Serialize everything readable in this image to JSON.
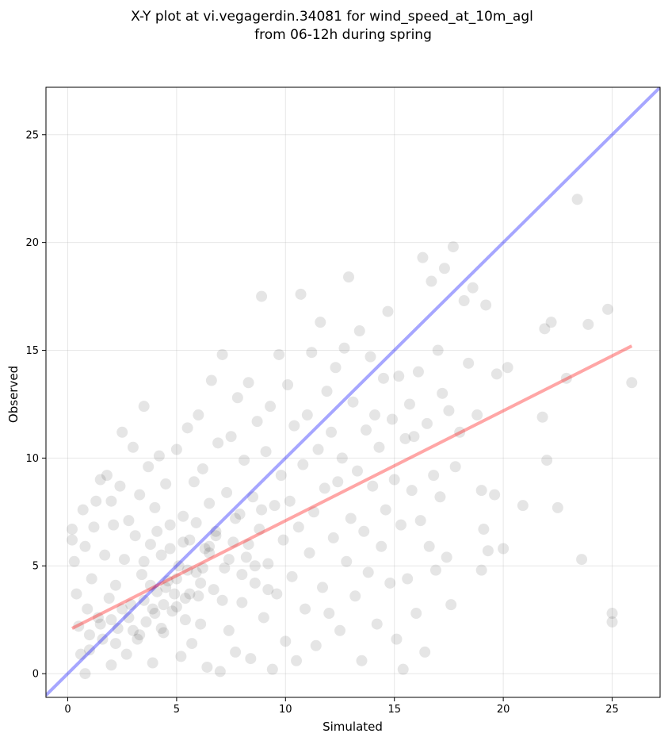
{
  "chart_data": {
    "type": "scatter",
    "title_lines": [
      "X-Y plot at vi.vegagerdin.34081 for wind_speed_at_10m_agl",
      "from 06-12h during spring"
    ],
    "xlabel": "Simulated",
    "ylabel": "Observed",
    "xlim": [
      -1.0,
      27.2
    ],
    "ylim": [
      -1.1,
      27.2
    ],
    "xticks": [
      0,
      5,
      10,
      15,
      20,
      25
    ],
    "yticks": [
      0,
      5,
      10,
      15,
      20,
      25
    ],
    "grid": true,
    "point_color": "#000000",
    "point_opacity": 0.1,
    "points": [
      [
        0.2,
        6.7
      ],
      [
        0.2,
        6.2
      ],
      [
        0.3,
        5.2
      ],
      [
        0.4,
        3.7
      ],
      [
        0.5,
        2.2
      ],
      [
        0.6,
        0.9
      ],
      [
        0.7,
        7.6
      ],
      [
        0.8,
        5.9
      ],
      [
        0.8,
        0.0
      ],
      [
        0.9,
        3.0
      ],
      [
        1.0,
        1.1
      ],
      [
        1.1,
        4.4
      ],
      [
        1.2,
        6.8
      ],
      [
        1.3,
        8.0
      ],
      [
        1.4,
        2.6
      ],
      [
        1.5,
        9.0
      ],
      [
        1.6,
        1.6
      ],
      [
        1.7,
        5.5
      ],
      [
        1.8,
        9.2
      ],
      [
        1.9,
        3.5
      ],
      [
        2.0,
        0.4
      ],
      [
        2.0,
        8.0
      ],
      [
        2.1,
        6.9
      ],
      [
        2.2,
        4.1
      ],
      [
        2.3,
        2.1
      ],
      [
        2.4,
        8.7
      ],
      [
        2.5,
        11.2
      ],
      [
        2.6,
        5.3
      ],
      [
        2.7,
        0.9
      ],
      [
        2.8,
        7.1
      ],
      [
        2.9,
        3.2
      ],
      [
        3.0,
        10.5
      ],
      [
        3.1,
        6.4
      ],
      [
        3.2,
        1.6
      ],
      [
        3.3,
        8.3
      ],
      [
        3.4,
        4.6
      ],
      [
        3.5,
        12.4
      ],
      [
        3.6,
        2.4
      ],
      [
        3.7,
        9.6
      ],
      [
        3.8,
        6.0
      ],
      [
        3.9,
        0.5
      ],
      [
        4.0,
        7.7
      ],
      [
        4.1,
        3.8
      ],
      [
        4.2,
        10.1
      ],
      [
        4.3,
        5.5
      ],
      [
        4.4,
        1.9
      ],
      [
        4.5,
        8.8
      ],
      [
        4.6,
        4.3
      ],
      [
        4.7,
        6.9
      ],
      [
        4.8,
        2.9
      ],
      [
        5.0,
        10.4
      ],
      [
        5.1,
        5.0
      ],
      [
        5.2,
        0.8
      ],
      [
        5.3,
        7.3
      ],
      [
        5.4,
        3.5
      ],
      [
        5.5,
        11.4
      ],
      [
        5.6,
        6.2
      ],
      [
        5.7,
        1.4
      ],
      [
        5.8,
        8.9
      ],
      [
        5.9,
        4.7
      ],
      [
        6.0,
        12.0
      ],
      [
        6.1,
        2.3
      ],
      [
        6.2,
        9.5
      ],
      [
        6.3,
        5.8
      ],
      [
        6.4,
        0.3
      ],
      [
        6.5,
        7.9
      ],
      [
        6.6,
        13.6
      ],
      [
        6.7,
        3.9
      ],
      [
        6.8,
        6.6
      ],
      [
        6.9,
        10.7
      ],
      [
        7.0,
        0.1
      ],
      [
        7.1,
        14.8
      ],
      [
        7.2,
        4.9
      ],
      [
        7.3,
        8.4
      ],
      [
        7.4,
        2.0
      ],
      [
        7.5,
        11.0
      ],
      [
        7.6,
        6.1
      ],
      [
        7.7,
        1.0
      ],
      [
        7.8,
        12.8
      ],
      [
        7.9,
        7.4
      ],
      [
        8.0,
        3.3
      ],
      [
        8.1,
        9.9
      ],
      [
        8.2,
        5.4
      ],
      [
        8.3,
        13.5
      ],
      [
        8.4,
        0.7
      ],
      [
        8.5,
        8.2
      ],
      [
        8.6,
        4.2
      ],
      [
        8.7,
        11.7
      ],
      [
        8.8,
        6.7
      ],
      [
        8.9,
        17.5
      ],
      [
        9.0,
        2.6
      ],
      [
        9.1,
        10.3
      ],
      [
        9.2,
        5.1
      ],
      [
        9.3,
        12.4
      ],
      [
        9.4,
        0.2
      ],
      [
        9.5,
        7.8
      ],
      [
        9.6,
        3.7
      ],
      [
        9.7,
        14.8
      ],
      [
        9.8,
        9.2
      ],
      [
        9.9,
        6.2
      ],
      [
        10.0,
        1.5
      ],
      [
        10.1,
        13.4
      ],
      [
        10.2,
        8.0
      ],
      [
        10.3,
        4.5
      ],
      [
        10.4,
        11.5
      ],
      [
        10.5,
        0.6
      ],
      [
        10.6,
        6.8
      ],
      [
        10.7,
        17.6
      ],
      [
        10.8,
        9.7
      ],
      [
        10.9,
        3.0
      ],
      [
        11.0,
        12.0
      ],
      [
        11.1,
        5.6
      ],
      [
        11.2,
        14.9
      ],
      [
        11.3,
        7.5
      ],
      [
        11.4,
        1.3
      ],
      [
        11.5,
        10.4
      ],
      [
        11.6,
        16.3
      ],
      [
        11.7,
        4.0
      ],
      [
        11.8,
        8.6
      ],
      [
        11.9,
        13.1
      ],
      [
        12.0,
        2.8
      ],
      [
        12.1,
        11.2
      ],
      [
        12.2,
        6.3
      ],
      [
        12.3,
        14.2
      ],
      [
        12.4,
        8.9
      ],
      [
        12.5,
        2.0
      ],
      [
        12.6,
        10.0
      ],
      [
        12.7,
        15.1
      ],
      [
        12.8,
        5.2
      ],
      [
        12.9,
        18.4
      ],
      [
        13.0,
        7.2
      ],
      [
        13.1,
        12.6
      ],
      [
        13.2,
        3.6
      ],
      [
        13.3,
        9.4
      ],
      [
        13.4,
        15.9
      ],
      [
        13.5,
        0.6
      ],
      [
        13.6,
        6.6
      ],
      [
        13.7,
        11.3
      ],
      [
        13.8,
        4.7
      ],
      [
        13.9,
        14.7
      ],
      [
        14.0,
        8.7
      ],
      [
        14.1,
        12.0
      ],
      [
        14.2,
        2.3
      ],
      [
        14.3,
        10.5
      ],
      [
        14.4,
        5.9
      ],
      [
        14.5,
        13.7
      ],
      [
        14.6,
        7.6
      ],
      [
        14.7,
        16.8
      ],
      [
        14.8,
        4.2
      ],
      [
        14.9,
        11.8
      ],
      [
        15.0,
        9.0
      ],
      [
        15.1,
        1.6
      ],
      [
        15.2,
        13.8
      ],
      [
        15.3,
        6.9
      ],
      [
        15.4,
        0.2
      ],
      [
        15.5,
        10.9
      ],
      [
        15.6,
        4.4
      ],
      [
        15.7,
        12.5
      ],
      [
        15.8,
        8.5
      ],
      [
        15.9,
        11.0
      ],
      [
        16.0,
        2.8
      ],
      [
        16.1,
        14.0
      ],
      [
        16.2,
        7.1
      ],
      [
        16.3,
        19.3
      ],
      [
        16.4,
        1.0
      ],
      [
        16.5,
        11.6
      ],
      [
        16.6,
        5.9
      ],
      [
        16.7,
        18.2
      ],
      [
        16.8,
        9.2
      ],
      [
        16.9,
        4.8
      ],
      [
        17.0,
        15.0
      ],
      [
        17.1,
        8.2
      ],
      [
        17.2,
        13.0
      ],
      [
        17.3,
        18.8
      ],
      [
        17.4,
        5.4
      ],
      [
        17.5,
        12.2
      ],
      [
        17.6,
        3.2
      ],
      [
        17.7,
        19.8
      ],
      [
        17.8,
        9.6
      ],
      [
        18.0,
        11.2
      ],
      [
        18.2,
        17.3
      ],
      [
        18.4,
        14.4
      ],
      [
        18.6,
        17.9
      ],
      [
        18.8,
        12.0
      ],
      [
        19.0,
        8.5
      ],
      [
        19.0,
        4.8
      ],
      [
        19.1,
        6.7
      ],
      [
        19.2,
        17.1
      ],
      [
        19.3,
        5.7
      ],
      [
        19.6,
        8.3
      ],
      [
        19.7,
        13.9
      ],
      [
        20.0,
        5.8
      ],
      [
        20.2,
        14.2
      ],
      [
        20.9,
        7.8
      ],
      [
        21.8,
        11.9
      ],
      [
        21.9,
        16.0
      ],
      [
        22.0,
        9.9
      ],
      [
        22.2,
        16.3
      ],
      [
        22.5,
        7.7
      ],
      [
        22.9,
        13.7
      ],
      [
        23.4,
        22.0
      ],
      [
        23.6,
        5.3
      ],
      [
        23.9,
        16.2
      ],
      [
        24.8,
        16.9
      ],
      [
        25.0,
        2.8
      ],
      [
        25.0,
        2.4
      ],
      [
        25.9,
        13.5
      ],
      [
        3.5,
        5.2
      ],
      [
        3.8,
        4.1
      ],
      [
        4.1,
        6.6
      ],
      [
        4.4,
        3.2
      ],
      [
        4.7,
        5.8
      ],
      [
        5.0,
        4.4
      ],
      [
        5.3,
        6.1
      ],
      [
        5.6,
        3.7
      ],
      [
        5.9,
        7.0
      ],
      [
        6.2,
        4.9
      ],
      [
        6.5,
        5.6
      ],
      [
        6.8,
        6.4
      ],
      [
        7.1,
        3.4
      ],
      [
        7.4,
        5.3
      ],
      [
        7.7,
        7.2
      ],
      [
        8.0,
        4.6
      ],
      [
        8.3,
        6.0
      ],
      [
        8.6,
        5.0
      ],
      [
        8.9,
        7.6
      ],
      [
        9.2,
        3.9
      ],
      [
        2.0,
        2.5
      ],
      [
        2.5,
        3.0
      ],
      [
        3.0,
        2.0
      ],
      [
        3.5,
        3.4
      ],
      [
        4.0,
        2.8
      ],
      [
        4.5,
        4.0
      ],
      [
        5.0,
        3.1
      ],
      [
        5.5,
        4.8
      ],
      [
        6.0,
        3.6
      ],
      [
        6.5,
        5.9
      ],
      [
        1.0,
        1.8
      ],
      [
        1.5,
        2.3
      ],
      [
        2.2,
        1.4
      ],
      [
        2.8,
        2.6
      ],
      [
        3.3,
        1.8
      ],
      [
        3.9,
        3.0
      ],
      [
        4.3,
        2.1
      ],
      [
        4.9,
        3.7
      ],
      [
        5.4,
        2.5
      ],
      [
        6.1,
        4.2
      ]
    ],
    "reference_line": {
      "color": "#0000ff",
      "opacity": 0.35,
      "from": [
        -1.0,
        -1.0
      ],
      "to": [
        27.2,
        27.2
      ]
    },
    "fit_line": {
      "color": "#ff0000",
      "opacity": 0.35,
      "from": [
        0.2,
        2.1
      ],
      "to": [
        25.9,
        15.2
      ]
    }
  }
}
